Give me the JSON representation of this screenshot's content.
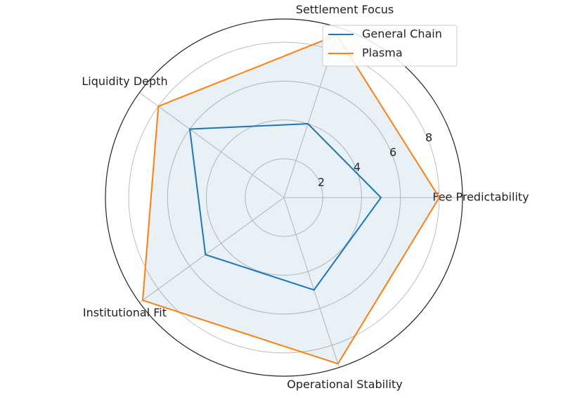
{
  "chart_data": {
    "type": "radar",
    "categories": [
      "Fee Predictability",
      "Settlement Focus",
      "Liquidity Depth",
      "Institutional Fit",
      "Operational Stability"
    ],
    "series": [
      {
        "name": "General Chain",
        "color": "#1f77b4",
        "values": [
          5,
          4,
          6,
          5,
          5
        ]
      },
      {
        "name": "Plasma",
        "color": "#ff7f0e",
        "values": [
          8,
          8.8,
          8,
          9,
          9
        ]
      }
    ],
    "ylim": [
      0,
      9.2
    ],
    "yticks": [
      2,
      4,
      6,
      8
    ],
    "grid": true,
    "legend": "upper right"
  }
}
